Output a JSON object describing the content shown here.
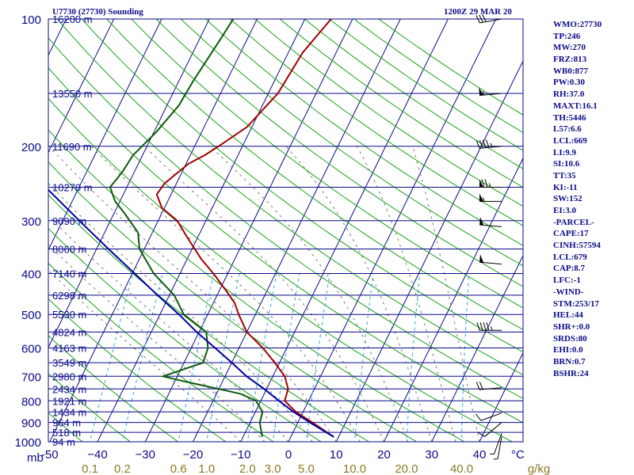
{
  "title_left": "U7730 (27730) Sounding",
  "title_right": "1200Z 29 MAR 20",
  "indices": [
    "WMO:27730",
    "TP:246",
    "MW:270",
    "FRZ:813",
    "WB0:877",
    "PW:0.30",
    "RH:37.0",
    "MAXT:16.1",
    "TH:5446",
    "L57:6.6",
    "LCL:669",
    "LI:9.9",
    "SI:10.6",
    "TT:35",
    "KI:-11",
    "SW:152",
    "EI:3.0",
    "-PARCEL-",
    "CAPE:17",
    "CINH:57594",
    "LCL:679",
    "CAP:8.7",
    "LFC:-1",
    "-WIND-",
    "STM:253/17",
    "HEL:44",
    "SHR+:0.0",
    "SRDS:80",
    "EHI:0.0",
    "BRN:0.7",
    "BSHR:24"
  ],
  "colors": {
    "isobar": "#0a0a8a",
    "isotherm": "#0a0a8a",
    "dry_adiabat": "#1aa11a",
    "moist_adiabat": "#7a7a7a",
    "mixing_ratio": "#3aa0e8",
    "temperature": "#a00000",
    "dewpoint": "#0a5a0a",
    "parcel": "#0000a0",
    "wind": "#000000",
    "label": "#0a0a8a",
    "mr_label": "#8a7a20"
  },
  "chart_data": {
    "type": "line",
    "title": "U7730 (27730) Sounding",
    "subtitle": "1200Z 29 MAR 20",
    "xlabel": "°C",
    "ylabel": "mb",
    "x_ticks": [
      -50,
      -40,
      -30,
      -20,
      -10,
      0,
      10,
      20,
      30,
      40
    ],
    "x_tick_labels": [
      "-50",
      "−40",
      "−30",
      "−20",
      "−10",
      "0",
      "10",
      "20",
      "30",
      "40"
    ],
    "corner_label": "mb",
    "x_unit_label": "°C",
    "pressure_ticks": [
      100,
      200,
      300,
      400,
      500,
      600,
      700,
      800,
      900,
      1000
    ],
    "heights": [
      {
        "p": 100,
        "label": "16200 m"
      },
      {
        "p": 150,
        "label": "13550 m"
      },
      {
        "p": 200,
        "label": "11690 m"
      },
      {
        "p": 250,
        "label": "10270 m"
      },
      {
        "p": 300,
        "label": "9090 m"
      },
      {
        "p": 350,
        "label": "8060 m"
      },
      {
        "p": 400,
        "label": "7140 m"
      },
      {
        "p": 450,
        "label": "6298 m"
      },
      {
        "p": 500,
        "label": "5530 m"
      },
      {
        "p": 550,
        "label": "4824 m"
      },
      {
        "p": 600,
        "label": "4163 m"
      },
      {
        "p": 650,
        "label": "3549 m"
      },
      {
        "p": 700,
        "label": "2980 m"
      },
      {
        "p": 750,
        "label": "2434 m"
      },
      {
        "p": 800,
        "label": "1921 m"
      },
      {
        "p": 850,
        "label": "1434 m"
      },
      {
        "p": 900,
        "label": "964 m"
      },
      {
        "p": 950,
        "label": "518 m"
      },
      {
        "p": 1000,
        "label": "94 m"
      }
    ],
    "mixing_ratio_labels": [
      {
        "w": 0.1,
        "label": "0.1"
      },
      {
        "w": 0.2,
        "label": "0.2"
      },
      {
        "w": 0.6,
        "label": "0.6"
      },
      {
        "w": 1.0,
        "label": "1.0"
      },
      {
        "w": 2.0,
        "label": "2.0"
      },
      {
        "w": 3.0,
        "label": "3.0"
      },
      {
        "w": 5.0,
        "label": "5.0"
      },
      {
        "w": 10.0,
        "label": "10.0"
      },
      {
        "w": 20.0,
        "label": "20.0"
      },
      {
        "w": 40.0,
        "label": "40.0"
      }
    ],
    "mixing_ratio_unit": "g/kg",
    "series": [
      {
        "key": "temperature",
        "points": [
          [
            974,
            9.0
          ],
          [
            900,
            3.0
          ],
          [
            850,
            -1.5
          ],
          [
            800,
            -5.0
          ],
          [
            750,
            -5.5
          ],
          [
            700,
            -7.5
          ],
          [
            650,
            -11.0
          ],
          [
            600,
            -15.0
          ],
          [
            550,
            -20.0
          ],
          [
            500,
            -23.5
          ],
          [
            470,
            -25.5
          ],
          [
            440,
            -28.5
          ],
          [
            400,
            -33.0
          ],
          [
            370,
            -37.0
          ],
          [
            330,
            -42.0
          ],
          [
            300,
            -46.0
          ],
          [
            280,
            -50.5
          ],
          [
            260,
            -53.0
          ],
          [
            245,
            -52.5
          ],
          [
            220,
            -49.5
          ],
          [
            210,
            -47.0
          ],
          [
            200,
            -45.0
          ],
          [
            180,
            -41.0
          ],
          [
            150,
            -38.0
          ],
          [
            120,
            -37.0
          ],
          [
            100,
            -34.5
          ]
        ]
      },
      {
        "key": "dewpoint",
        "points": [
          [
            974,
            -6.0
          ],
          [
            900,
            -8.0
          ],
          [
            850,
            -8.5
          ],
          [
            800,
            -11.0
          ],
          [
            770,
            -15.0
          ],
          [
            750,
            -20.0
          ],
          [
            720,
            -28.0
          ],
          [
            700,
            -33.0
          ],
          [
            650,
            -26.0
          ],
          [
            600,
            -26.5
          ],
          [
            550,
            -28.5
          ],
          [
            500,
            -35.0
          ],
          [
            450,
            -39.0
          ],
          [
            400,
            -45.5
          ],
          [
            350,
            -51.0
          ],
          [
            320,
            -53.0
          ],
          [
            290,
            -57.5
          ],
          [
            270,
            -61.0
          ],
          [
            250,
            -63.5
          ],
          [
            230,
            -62.5
          ],
          [
            210,
            -62.0
          ],
          [
            185,
            -59.5
          ],
          [
            160,
            -57.5
          ],
          [
            140,
            -57.0
          ],
          [
            110,
            -55.5
          ],
          [
            100,
            -55.0
          ]
        ]
      },
      {
        "key": "parcel",
        "points": [
          [
            974,
            9.0
          ],
          [
            900,
            2.5
          ],
          [
            850,
            -2.0
          ],
          [
            800,
            -6.2
          ],
          [
            750,
            -10.5
          ],
          [
            700,
            -15.5
          ],
          [
            650,
            -20.0
          ],
          [
            600,
            -25.0
          ],
          [
            550,
            -30.5
          ],
          [
            500,
            -36.0
          ],
          [
            450,
            -42.5
          ],
          [
            400,
            -49.5
          ],
          [
            350,
            -57.5
          ],
          [
            300,
            -66.5
          ],
          [
            250,
            -77.0
          ],
          [
            200,
            -89.5
          ],
          [
            150,
            -105.0
          ],
          [
            120,
            -115.0
          ]
        ]
      }
    ],
    "winds": [
      {
        "p": 100,
        "dir": 260,
        "spd": 30
      },
      {
        "p": 150,
        "dir": 265,
        "spd": 55
      },
      {
        "p": 200,
        "dir": 265,
        "spd": 45
      },
      {
        "p": 250,
        "dir": 270,
        "spd": 75
      },
      {
        "p": 270,
        "dir": 270,
        "spd": 55
      },
      {
        "p": 310,
        "dir": 275,
        "spd": 50
      },
      {
        "p": 380,
        "dir": 275,
        "spd": 50
      },
      {
        "p": 545,
        "dir": 270,
        "spd": 45
      },
      {
        "p": 745,
        "dir": 265,
        "spd": 20
      },
      {
        "p": 855,
        "dir": 250,
        "spd": 10
      },
      {
        "p": 900,
        "dir": 230,
        "spd": 10
      },
      {
        "p": 955,
        "dir": 200,
        "spd": 5
      },
      {
        "p": 974,
        "dir": 190,
        "spd": 5
      }
    ]
  }
}
